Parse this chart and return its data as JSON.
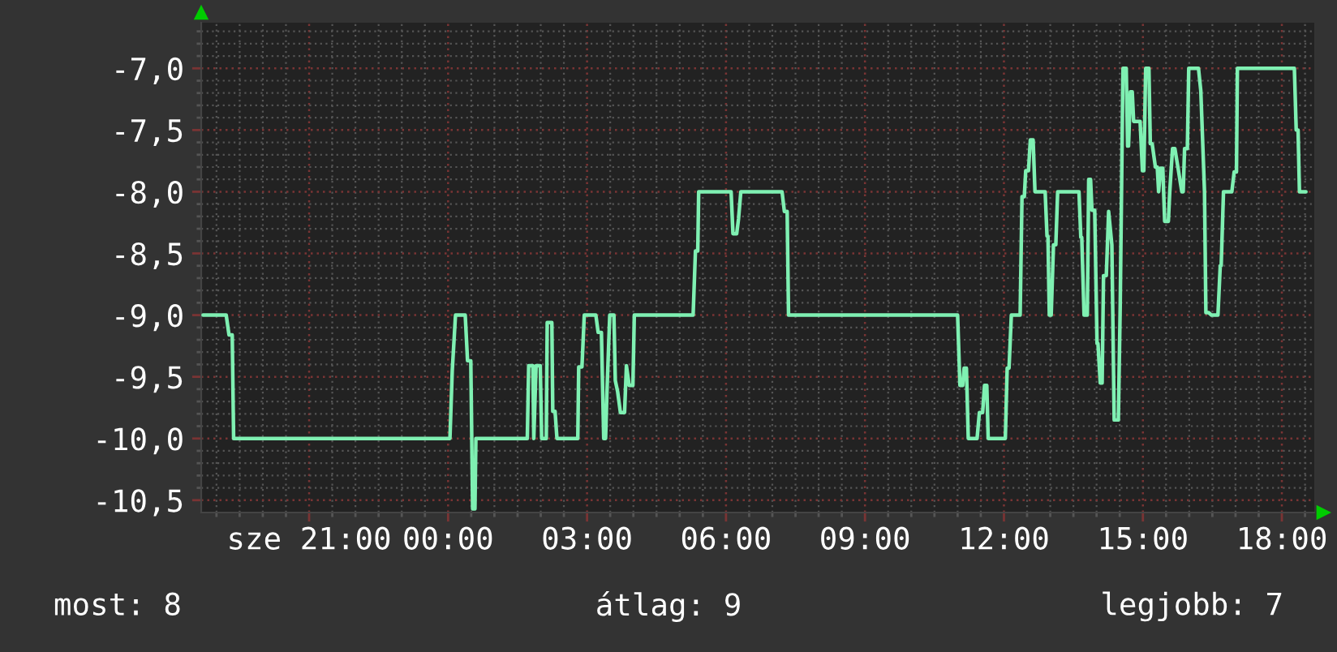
{
  "chart_data": {
    "type": "line",
    "x": [
      -5.29,
      -4.79,
      -4.73,
      -4.66,
      -4.63,
      0.04,
      0.09,
      0.16,
      0.37,
      0.42,
      0.49,
      0.53,
      0.58,
      0.6,
      1.71,
      1.74,
      1.83,
      1.85,
      1.9,
      1.99,
      2.02,
      2.12,
      2.14,
      2.24,
      2.26,
      2.31,
      2.35,
      2.8,
      2.82,
      2.89,
      2.94,
      3.19,
      3.24,
      3.31,
      3.36,
      3.4,
      3.43,
      3.49,
      3.58,
      3.61,
      3.66,
      3.72,
      3.81,
      3.85,
      3.91,
      3.99,
      4.02,
      5.29,
      5.34,
      5.39,
      5.41,
      6.11,
      6.15,
      6.23,
      6.27,
      6.32,
      7.21,
      7.26,
      7.32,
      7.35,
      11.0,
      11.05,
      11.11,
      11.14,
      11.19,
      11.23,
      11.42,
      11.47,
      11.54,
      11.58,
      11.63,
      11.66,
      12.03,
      12.07,
      12.11,
      12.16,
      12.35,
      12.39,
      12.44,
      12.47,
      12.53,
      12.57,
      12.63,
      12.67,
      12.89,
      12.93,
      12.95,
      12.98,
      13.02,
      13.07,
      13.12,
      13.16,
      13.62,
      13.66,
      13.68,
      13.73,
      13.8,
      13.83,
      13.87,
      13.9,
      13.96,
      14.01,
      14.03,
      14.08,
      14.12,
      14.15,
      14.21,
      14.26,
      14.33,
      14.38,
      14.47,
      14.51,
      14.57,
      14.64,
      14.67,
      14.69,
      14.73,
      14.77,
      14.8,
      14.94,
      14.99,
      15.02,
      15.06,
      15.13,
      15.16,
      15.2,
      15.27,
      15.31,
      15.34,
      15.38,
      15.43,
      15.47,
      15.55,
      15.58,
      15.64,
      15.69,
      15.76,
      15.84,
      15.87,
      15.9,
      15.96,
      15.99,
      16.2,
      16.25,
      16.33,
      16.36,
      16.42,
      16.48,
      16.62,
      16.67,
      16.69,
      16.74,
      16.92,
      16.97,
      17.02,
      17.04,
      18.27,
      18.31,
      18.35,
      18.38,
      18.52
    ],
    "series": [
      {
        "color": "#7ff0b2",
        "values": [
          -9.0,
          -9.0,
          -9.16,
          -9.16,
          -10.0,
          -10.0,
          -9.45,
          -9.0,
          -9.0,
          -9.37,
          -9.37,
          -10.57,
          -10.57,
          -10.0,
          -10.0,
          -9.41,
          -9.41,
          -10.0,
          -9.41,
          -9.41,
          -10.0,
          -10.0,
          -9.06,
          -9.06,
          -9.78,
          -9.78,
          -10.0,
          -10.0,
          -9.42,
          -9.42,
          -9.0,
          -9.0,
          -9.14,
          -9.14,
          -10.0,
          -10.0,
          -9.62,
          -9.0,
          -9.0,
          -9.53,
          -9.62,
          -9.79,
          -9.79,
          -9.41,
          -9.57,
          -9.57,
          -9.0,
          -9.0,
          -8.48,
          -8.48,
          -8.0,
          -8.0,
          -8.34,
          -8.34,
          -8.22,
          -8.0,
          -8.0,
          -8.16,
          -8.16,
          -9.0,
          -9.0,
          -9.57,
          -9.57,
          -9.43,
          -9.43,
          -10.0,
          -10.0,
          -9.79,
          -9.79,
          -9.57,
          -9.57,
          -10.0,
          -10.0,
          -9.43,
          -9.43,
          -9.0,
          -9.0,
          -8.04,
          -8.04,
          -7.83,
          -7.83,
          -7.58,
          -7.58,
          -8.0,
          -8.0,
          -8.36,
          -8.36,
          -9.0,
          -9.0,
          -8.43,
          -8.43,
          -8.0,
          -8.0,
          -8.37,
          -8.37,
          -9.0,
          -9.0,
          -7.9,
          -7.9,
          -8.15,
          -8.15,
          -9.23,
          -9.23,
          -9.55,
          -9.55,
          -8.68,
          -8.68,
          -8.16,
          -8.43,
          -9.85,
          -9.85,
          -8.93,
          -7.0,
          -7.0,
          -7.63,
          -7.63,
          -7.19,
          -7.19,
          -7.43,
          -7.43,
          -7.83,
          -7.83,
          -7.0,
          -7.0,
          -7.61,
          -7.61,
          -7.8,
          -7.8,
          -8.0,
          -7.81,
          -7.81,
          -8.24,
          -8.24,
          -8.0,
          -7.65,
          -7.65,
          -7.81,
          -8.0,
          -8.0,
          -7.65,
          -7.65,
          -7.0,
          -7.0,
          -7.18,
          -8.0,
          -8.98,
          -8.98,
          -9.0,
          -9.0,
          -8.6,
          -8.6,
          -8.0,
          -8.0,
          -7.84,
          -7.84,
          -7.0,
          -7.0,
          -7.5,
          -7.5,
          -8.0,
          -8.0
        ]
      }
    ],
    "xlim": [
      -5.33,
      18.7
    ],
    "xticks": [
      {
        "value": -5,
        "label": null
      },
      {
        "value": -4.5,
        "label": null
      },
      {
        "value": -4,
        "label": null
      },
      {
        "value": -3.5,
        "label": null
      },
      {
        "value": -3,
        "label": "sze 21:00"
      },
      {
        "value": -2.5,
        "label": null
      },
      {
        "value": -2,
        "label": null
      },
      {
        "value": -1.5,
        "label": null
      },
      {
        "value": -1,
        "label": null
      },
      {
        "value": -0.5,
        "label": null
      },
      {
        "value": 0,
        "label": "00:00"
      },
      {
        "value": 0.5,
        "label": null
      },
      {
        "value": 1,
        "label": null
      },
      {
        "value": 1.5,
        "label": null
      },
      {
        "value": 2,
        "label": null
      },
      {
        "value": 2.5,
        "label": null
      },
      {
        "value": 3,
        "label": "03:00"
      },
      {
        "value": 3.5,
        "label": null
      },
      {
        "value": 4,
        "label": null
      },
      {
        "value": 4.5,
        "label": null
      },
      {
        "value": 5,
        "label": null
      },
      {
        "value": 5.5,
        "label": null
      },
      {
        "value": 6,
        "label": "06:00"
      },
      {
        "value": 6.5,
        "label": null
      },
      {
        "value": 7,
        "label": null
      },
      {
        "value": 7.5,
        "label": null
      },
      {
        "value": 8,
        "label": null
      },
      {
        "value": 8.5,
        "label": null
      },
      {
        "value": 9,
        "label": "09:00"
      },
      {
        "value": 9.5,
        "label": null
      },
      {
        "value": 10,
        "label": null
      },
      {
        "value": 10.5,
        "label": null
      },
      {
        "value": 11,
        "label": null
      },
      {
        "value": 11.5,
        "label": null
      },
      {
        "value": 12,
        "label": "12:00"
      },
      {
        "value": 12.5,
        "label": null
      },
      {
        "value": 13,
        "label": null
      },
      {
        "value": 13.5,
        "label": null
      },
      {
        "value": 14,
        "label": null
      },
      {
        "value": 14.5,
        "label": null
      },
      {
        "value": 15,
        "label": "15:00"
      },
      {
        "value": 15.5,
        "label": null
      },
      {
        "value": 16,
        "label": null
      },
      {
        "value": 16.5,
        "label": null
      },
      {
        "value": 17,
        "label": null
      },
      {
        "value": 17.5,
        "label": null
      },
      {
        "value": 18,
        "label": "18:00"
      },
      {
        "value": 18.5,
        "label": null
      }
    ],
    "ylim": [
      -10.6,
      -6.63
    ],
    "yticks": [
      {
        "value": -10.5,
        "label": "-10,5"
      },
      {
        "value": -10.4,
        "label": null
      },
      {
        "value": -10.3,
        "label": null
      },
      {
        "value": -10.2,
        "label": null
      },
      {
        "value": -10.1,
        "label": null
      },
      {
        "value": -10.0,
        "label": "-10,0"
      },
      {
        "value": -9.9,
        "label": null
      },
      {
        "value": -9.8,
        "label": null
      },
      {
        "value": -9.7,
        "label": null
      },
      {
        "value": -9.6,
        "label": null
      },
      {
        "value": -9.5,
        "label": "-9,5"
      },
      {
        "value": -9.4,
        "label": null
      },
      {
        "value": -9.3,
        "label": null
      },
      {
        "value": -9.2,
        "label": null
      },
      {
        "value": -9.1,
        "label": null
      },
      {
        "value": -9.0,
        "label": "-9,0"
      },
      {
        "value": -8.9,
        "label": null
      },
      {
        "value": -8.8,
        "label": null
      },
      {
        "value": -8.7,
        "label": null
      },
      {
        "value": -8.6,
        "label": null
      },
      {
        "value": -8.5,
        "label": "-8,5"
      },
      {
        "value": -8.4,
        "label": null
      },
      {
        "value": -8.3,
        "label": null
      },
      {
        "value": -8.2,
        "label": null
      },
      {
        "value": -8.1,
        "label": null
      },
      {
        "value": -8.0,
        "label": "-8,0"
      },
      {
        "value": -7.9,
        "label": null
      },
      {
        "value": -7.8,
        "label": null
      },
      {
        "value": -7.7,
        "label": null
      },
      {
        "value": -7.6,
        "label": null
      },
      {
        "value": -7.5,
        "label": "-7,5"
      },
      {
        "value": -7.4,
        "label": null
      },
      {
        "value": -7.3,
        "label": null
      },
      {
        "value": -7.2,
        "label": null
      },
      {
        "value": -7.1,
        "label": null
      },
      {
        "value": -7.0,
        "label": "-7,0"
      },
      {
        "value": -6.9,
        "label": null
      },
      {
        "value": -6.8,
        "label": null
      },
      {
        "value": -6.7,
        "label": null
      }
    ],
    "grid": true,
    "annotations": [
      "most: 8",
      "átlag: 9",
      "legjobb: 7"
    ]
  }
}
